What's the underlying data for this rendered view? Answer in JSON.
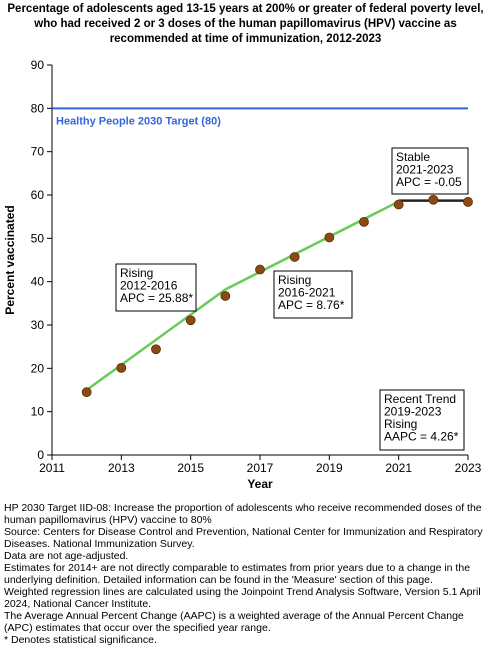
{
  "chart_data": {
    "type": "scatter",
    "title": "Percentage of adolescents aged 13-15 years at 200% or greater of federal poverty level, who had received 2 or 3 doses of the human papillomavirus (HPV) vaccine as recommended at time of immunization, 2012-2023",
    "xlabel": "Year",
    "ylabel": "Percent vaccinated",
    "xlim": [
      2011,
      2023
    ],
    "ylim": [
      0,
      90
    ],
    "xticks": [
      "2011",
      "2013",
      "2015",
      "2017",
      "2019",
      "2021",
      "2023"
    ],
    "yticks": [
      "0",
      "10",
      "20",
      "30",
      "40",
      "50",
      "60",
      "70",
      "80",
      "90"
    ],
    "grid": false,
    "points": {
      "x": [
        2012,
        2013,
        2014,
        2015,
        2016,
        2017,
        2018,
        2019,
        2020,
        2021,
        2022,
        2023
      ],
      "y": [
        14.5,
        20.1,
        24.4,
        31.1,
        36.7,
        42.8,
        45.7,
        50.2,
        53.8,
        57.8,
        58.9,
        58.4
      ]
    },
    "trend_segments": [
      {
        "x": [
          2012,
          2016
        ],
        "y": [
          15.0,
          38.2
        ],
        "color": "#66cc55"
      },
      {
        "x": [
          2016,
          2021
        ],
        "y": [
          38.2,
          58.5
        ],
        "color": "#66cc55"
      },
      {
        "x": [
          2021,
          2023
        ],
        "y": [
          58.7,
          58.7
        ],
        "color": "#222222"
      }
    ],
    "target": {
      "value": 80,
      "label": "Healthy People 2030 Target (80)",
      "color": "#3366dd"
    },
    "annotations": [
      {
        "lines": [
          "Rising",
          "2012-2016",
          "APC = 25.88*"
        ]
      },
      {
        "lines": [
          "Rising",
          "2016-2021",
          "APC =  8.76*"
        ]
      },
      {
        "lines": [
          "Stable",
          "2021-2023",
          "APC = -0.05"
        ]
      },
      {
        "lines": [
          "Recent Trend",
          "2019-2023",
          "Rising",
          "AAPC =  4.26*"
        ]
      }
    ],
    "colors": {
      "marker_fill": "#8b4a12",
      "marker_stroke": "#5a2e08"
    }
  },
  "footnotes": [
    "HP 2030 Target IID-08:  Increase the proportion of adolescents who receive recommended doses of the human papillomavirus (HPV) vaccine to 80%",
    "Source: Centers for Disease Control and Prevention, National Center for Immunization and Respiratory Diseases. National Immunization Survey.",
    "Data are not age-adjusted.",
    "Estimates for 2014+ are not directly comparable to estimates from prior years due to a change in the underlying definition. Detailed information can be found in the 'Measure' section of this page.",
    "Weighted regression lines are calculated using the Joinpoint Trend Analysis Software, Version 5.1 April 2024, National Cancer Institute.",
    "The Average Annual Percent Change (AAPC) is a weighted average of the Annual Percent Change (APC) estimates that occur over the specified year range.",
    "* Denotes statistical significance."
  ]
}
